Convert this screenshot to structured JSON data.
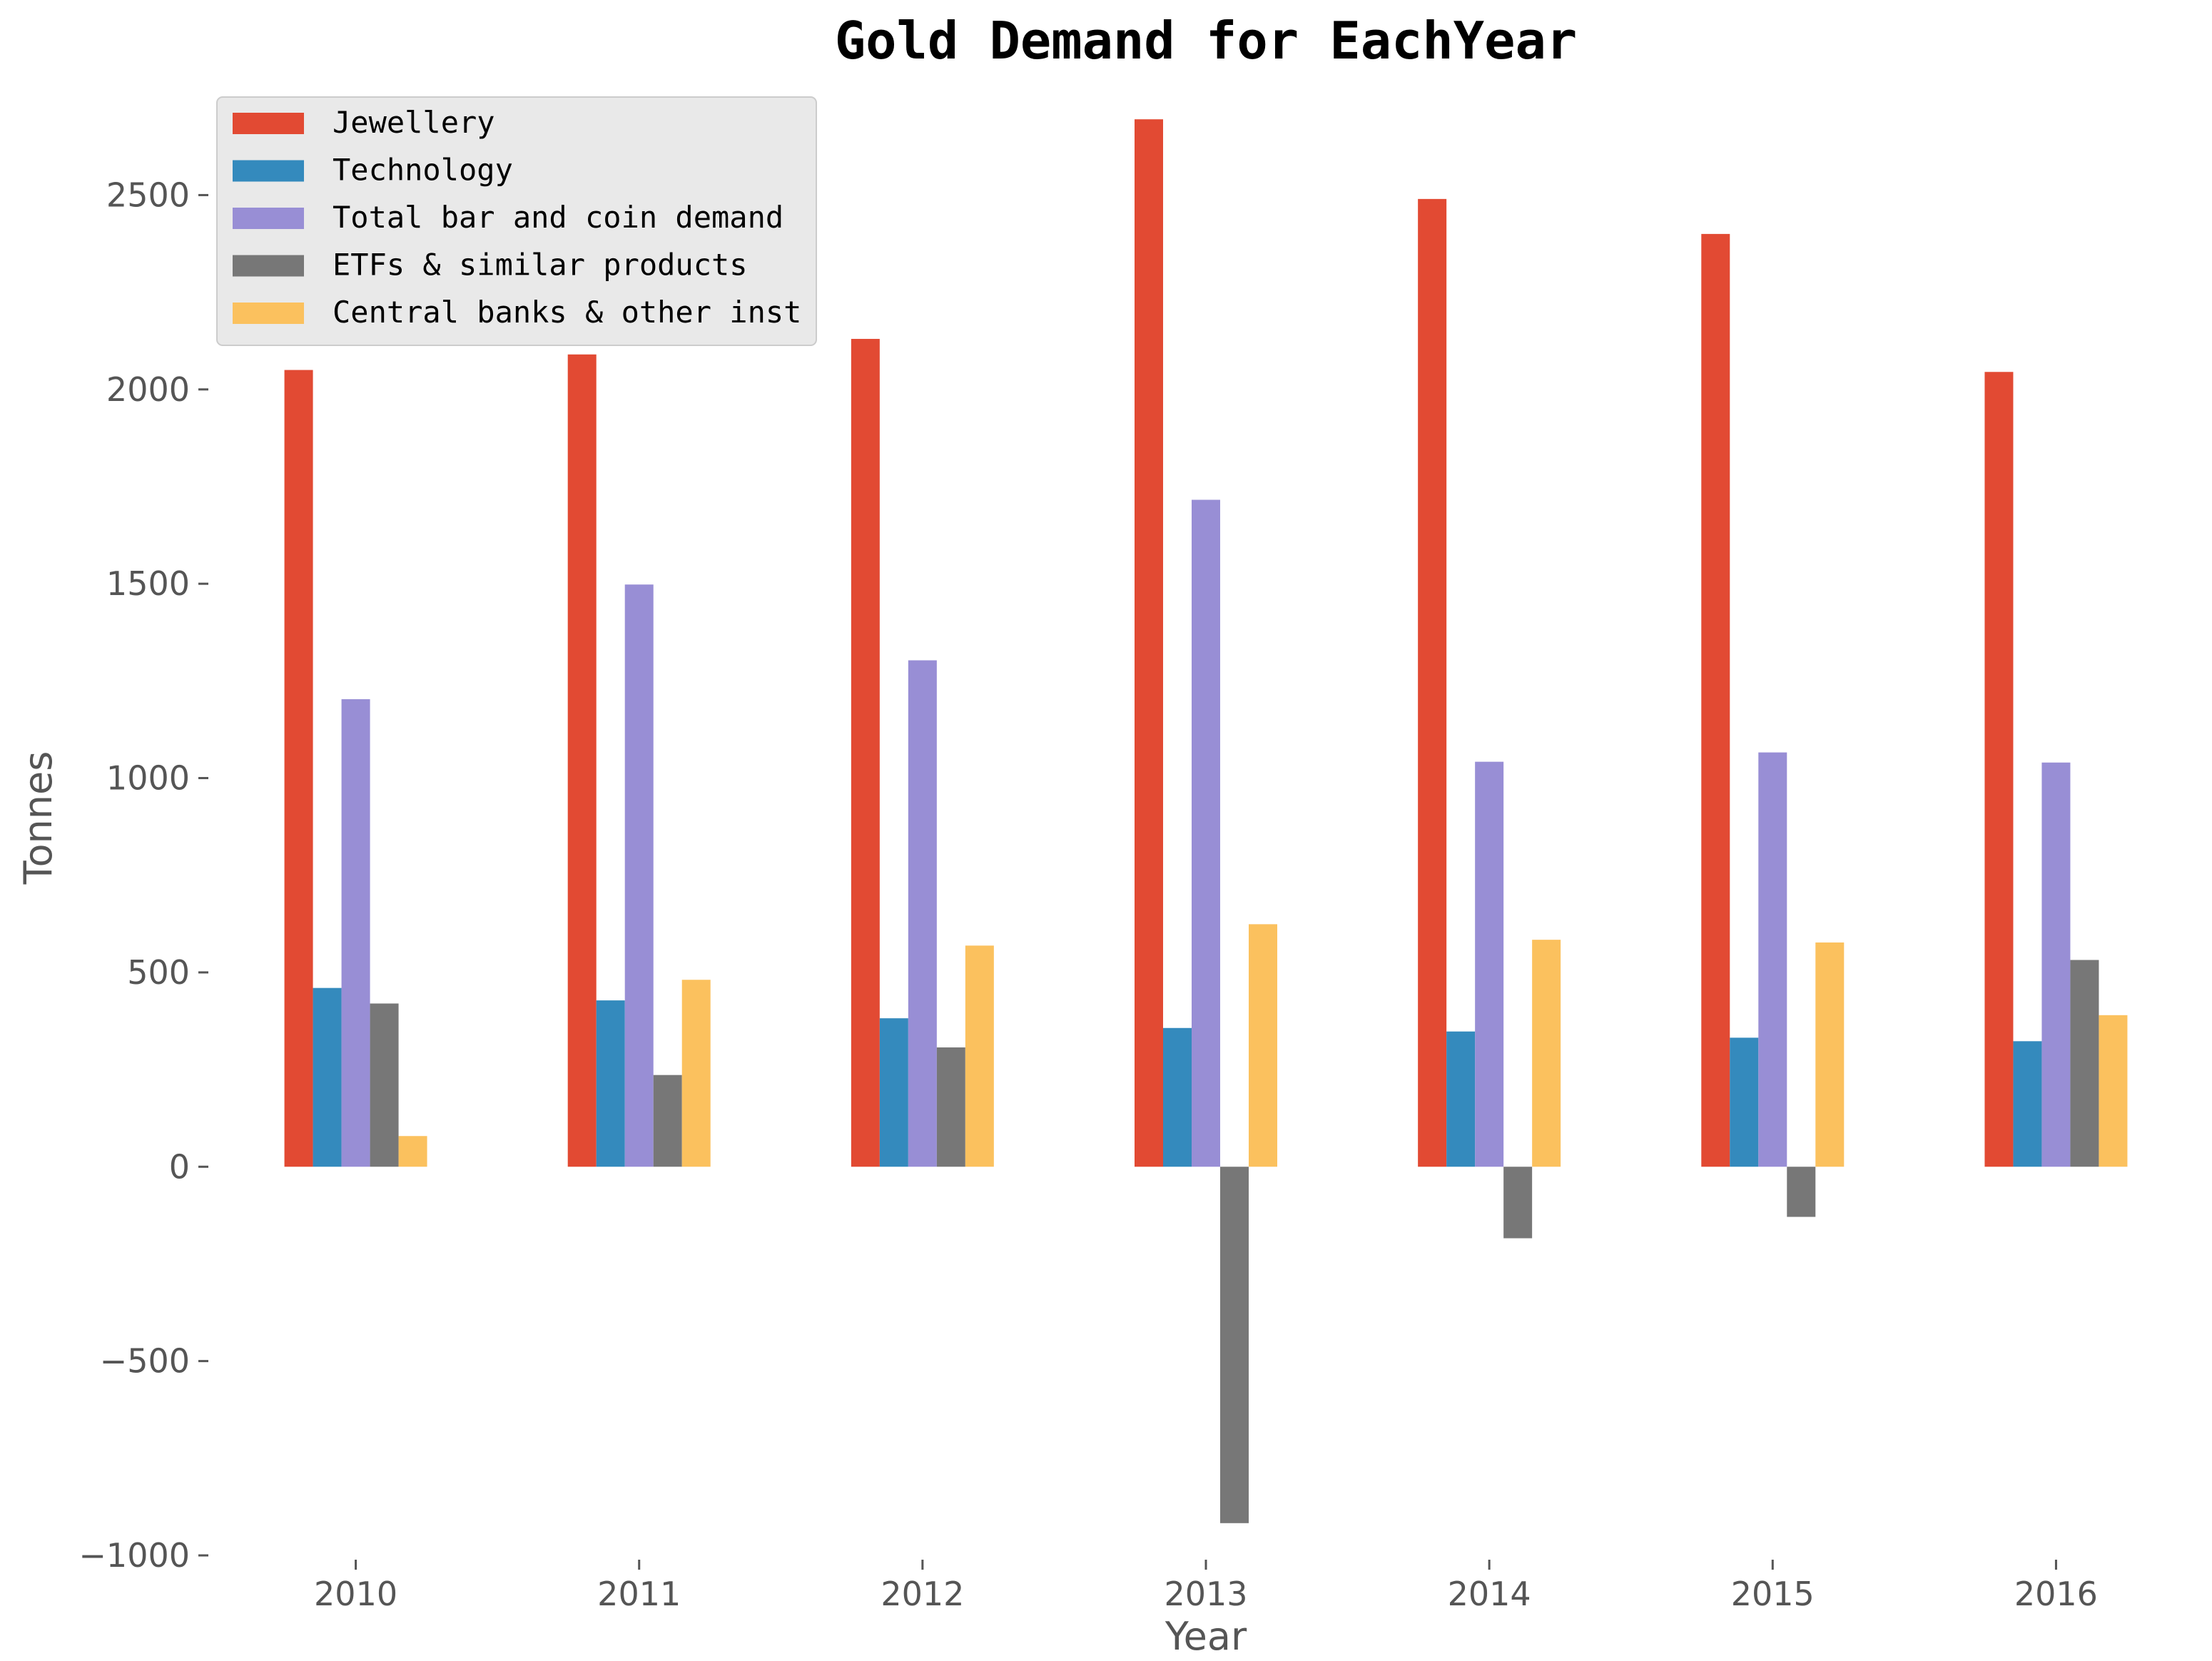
{
  "chart_data": {
    "type": "bar",
    "title": "Gold Demand for EachYear",
    "xlabel": "Year",
    "ylabel": "Tonnes",
    "categories": [
      "2010",
      "2011",
      "2012",
      "2013",
      "2014",
      "2015",
      "2016"
    ],
    "series": [
      {
        "name": "Jewellery",
        "color": "#E24A33",
        "values": [
          2050,
          2090,
          2130,
          2695,
          2490,
          2400,
          2045
        ]
      },
      {
        "name": "Technology",
        "color": "#348ABD",
        "values": [
          460,
          428,
          382,
          357,
          348,
          332,
          323
        ]
      },
      {
        "name": "Total bar and coin demand",
        "color": "#988ED5",
        "values": [
          1203,
          1498,
          1303,
          1716,
          1042,
          1066,
          1040
        ]
      },
      {
        "name": "ETFs & similar products",
        "color": "#777777",
        "values": [
          420,
          236,
          307,
          -917,
          -184,
          -129,
          532
        ]
      },
      {
        "name": "Central banks & other inst",
        "color": "#FBC15E",
        "values": [
          79,
          481,
          569,
          624,
          584,
          577,
          390
        ]
      }
    ],
    "ylim": [
      -1000,
      2800
    ],
    "yticks": [
      -1000,
      -500,
      0,
      500,
      1000,
      1500,
      2000,
      2500
    ],
    "grid": false,
    "legend_position": "top-left"
  }
}
